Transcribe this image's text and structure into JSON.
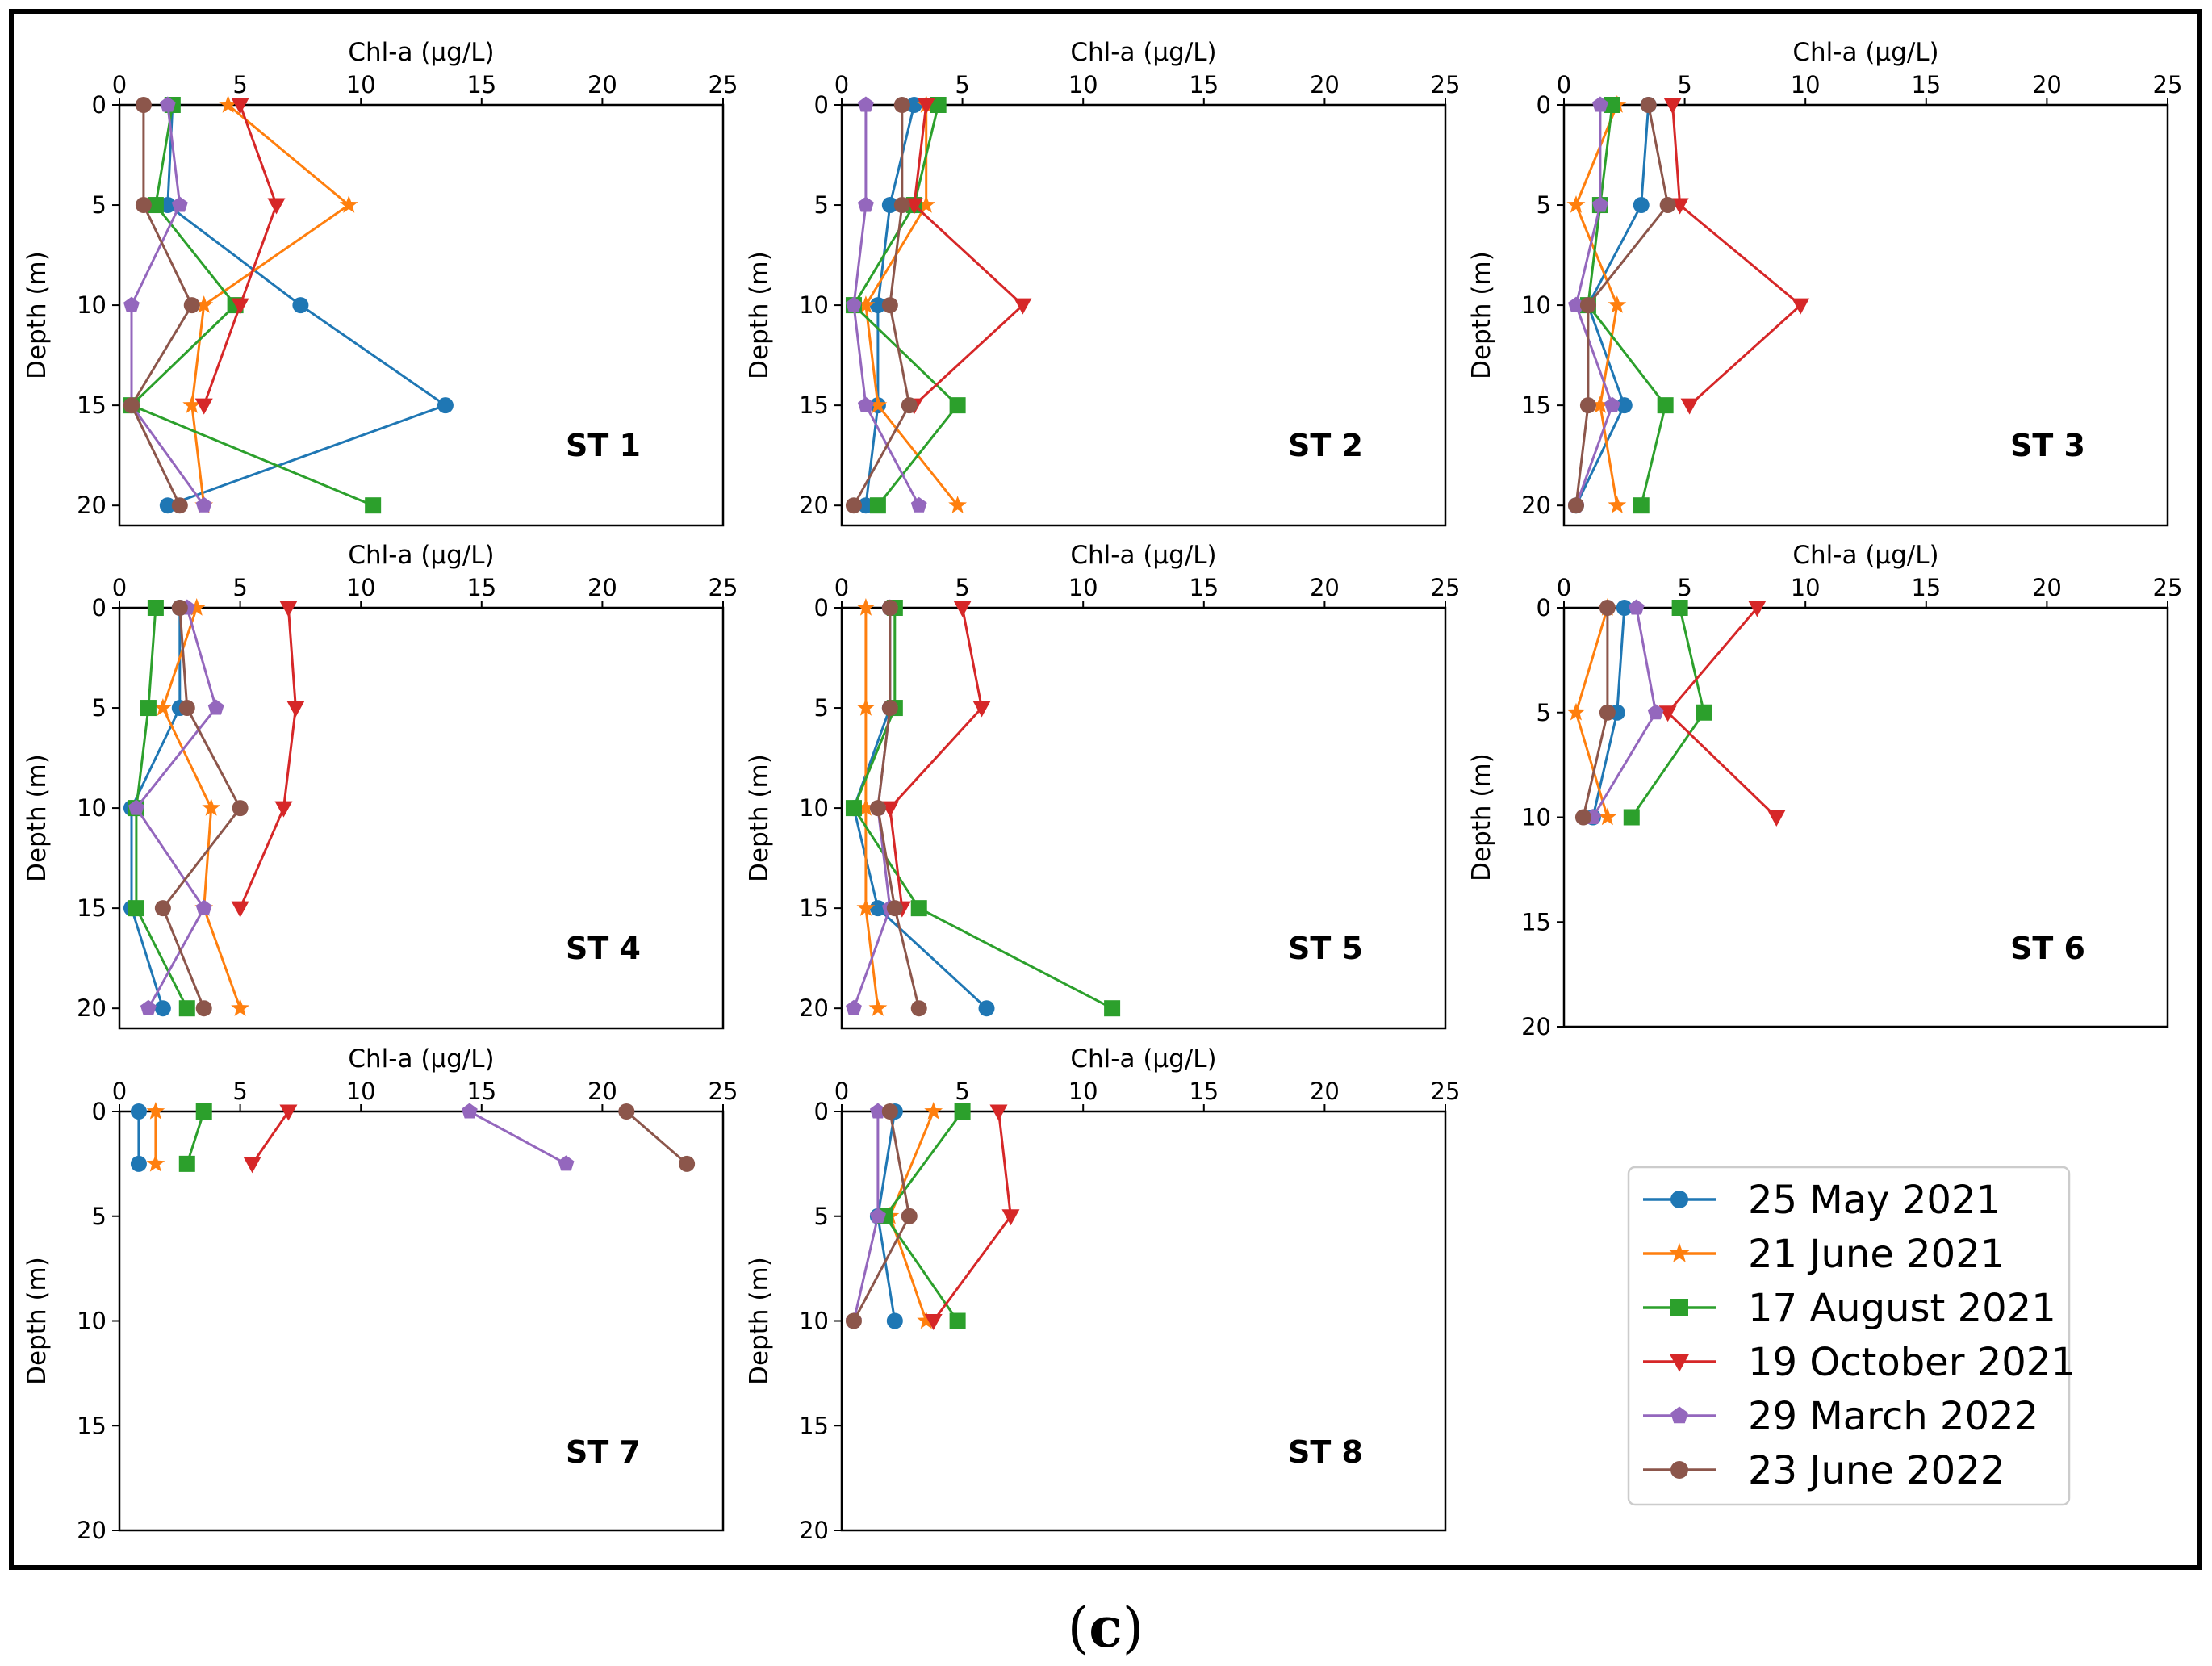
{
  "caption": {
    "open": "(",
    "letter": "c",
    "close": ")"
  },
  "colors": {
    "25 May 2021": "#1f77b4",
    "21 June 2021": "#ff7f0e",
    "17 August 2021": "#2ca02c",
    "19 October 2021": "#d62728",
    "29 March 2022": "#9467bd",
    "23 June 2022": "#8c564b"
  },
  "legend": [
    {
      "label": "25 May 2021",
      "marker": "circle"
    },
    {
      "label": "21 June 2021",
      "marker": "star"
    },
    {
      "label": "17 August 2021",
      "marker": "square"
    },
    {
      "label": "19 October 2021",
      "marker": "triangle-down"
    },
    {
      "label": "29 March 2022",
      "marker": "pentagon"
    },
    {
      "label": "23 June 2022",
      "marker": "circle"
    }
  ],
  "chart_data": [
    {
      "type": "line",
      "title": "ST 1",
      "xlabel": "Chl-a (µg/L)",
      "ylabel": "Depth (m)",
      "xlim": [
        0,
        25
      ],
      "ylim": [
        21,
        0
      ],
      "xticks": [
        0,
        5,
        10,
        15,
        20,
        25
      ],
      "yticks": [
        0,
        5,
        10,
        15,
        20
      ],
      "series": [
        {
          "name": "25 May 2021",
          "x": [
            2.2,
            2.0,
            7.5,
            13.5,
            2.0
          ],
          "y": [
            0,
            5,
            10,
            15,
            20
          ]
        },
        {
          "name": "21 June 2021",
          "x": [
            4.5,
            9.5,
            3.5,
            3.0,
            3.5
          ],
          "y": [
            0,
            5,
            10,
            15,
            20
          ]
        },
        {
          "name": "17 August 2021",
          "x": [
            2.2,
            1.5,
            4.8,
            0.5,
            10.5
          ],
          "y": [
            0,
            5,
            10,
            15,
            20
          ]
        },
        {
          "name": "19 October 2021",
          "x": [
            5.0,
            6.5,
            5.0,
            3.5
          ],
          "y": [
            0,
            5,
            10,
            15
          ]
        },
        {
          "name": "29 March 2022",
          "x": [
            2.0,
            2.5,
            0.5,
            0.5,
            3.5
          ],
          "y": [
            0,
            5,
            10,
            15,
            20
          ]
        },
        {
          "name": "23 June 2022",
          "x": [
            1.0,
            1.0,
            3.0,
            0.5,
            2.5
          ],
          "y": [
            0,
            5,
            10,
            15,
            20
          ]
        }
      ]
    },
    {
      "type": "line",
      "title": "ST 2",
      "xlabel": "Chl-a (µg/L)",
      "ylabel": "Depth (m)",
      "xlim": [
        0,
        25
      ],
      "ylim": [
        21,
        0
      ],
      "xticks": [
        0,
        5,
        10,
        15,
        20,
        25
      ],
      "yticks": [
        0,
        5,
        10,
        15,
        20
      ],
      "series": [
        {
          "name": "25 May 2021",
          "x": [
            3.0,
            2.0,
            1.5,
            1.5,
            1.0
          ],
          "y": [
            0,
            5,
            10,
            15,
            20
          ]
        },
        {
          "name": "21 June 2021",
          "x": [
            3.5,
            3.5,
            1.0,
            1.5,
            4.8
          ],
          "y": [
            0,
            5,
            10,
            15,
            20
          ]
        },
        {
          "name": "17 August 2021",
          "x": [
            4.0,
            3.0,
            0.5,
            4.8,
            1.5
          ],
          "y": [
            0,
            5,
            10,
            15,
            20
          ]
        },
        {
          "name": "19 October 2021",
          "x": [
            3.5,
            3.0,
            7.5,
            3.0
          ],
          "y": [
            0,
            5,
            10,
            15
          ]
        },
        {
          "name": "29 March 2022",
          "x": [
            1.0,
            1.0,
            0.5,
            1.0,
            3.2
          ],
          "y": [
            0,
            5,
            10,
            15,
            20
          ]
        },
        {
          "name": "23 June 2022",
          "x": [
            2.5,
            2.5,
            2.0,
            2.8,
            0.5
          ],
          "y": [
            0,
            5,
            10,
            15,
            20
          ]
        }
      ]
    },
    {
      "type": "line",
      "title": "ST 3",
      "xlabel": "Chl-a (µg/L)",
      "ylabel": "Depth (m)",
      "xlim": [
        0,
        25
      ],
      "ylim": [
        21,
        0
      ],
      "xticks": [
        0,
        5,
        10,
        15,
        20,
        25
      ],
      "yticks": [
        0,
        5,
        10,
        15,
        20
      ],
      "series": [
        {
          "name": "25 May 2021",
          "x": [
            3.5,
            3.2,
            1.0,
            2.5,
            0.5
          ],
          "y": [
            0,
            5,
            10,
            15,
            20
          ]
        },
        {
          "name": "21 June 2021",
          "x": [
            2.2,
            0.5,
            2.2,
            1.5,
            2.2
          ],
          "y": [
            0,
            5,
            10,
            15,
            20
          ]
        },
        {
          "name": "17 August 2021",
          "x": [
            2.0,
            1.5,
            1.0,
            4.2,
            3.2
          ],
          "y": [
            0,
            5,
            10,
            15,
            20
          ]
        },
        {
          "name": "19 October 2021",
          "x": [
            4.5,
            4.8,
            9.8,
            5.2
          ],
          "y": [
            0,
            5,
            10,
            15
          ]
        },
        {
          "name": "29 March 2022",
          "x": [
            1.5,
            1.5,
            0.5,
            2.0,
            0.5
          ],
          "y": [
            0,
            5,
            10,
            15,
            20
          ]
        },
        {
          "name": "23 June 2022",
          "x": [
            3.5,
            4.3,
            1.0,
            1.0,
            0.5
          ],
          "y": [
            0,
            5,
            10,
            15,
            20
          ]
        }
      ]
    },
    {
      "type": "line",
      "title": "ST 4",
      "xlabel": "Chl-a (µg/L)",
      "ylabel": "Depth (m)",
      "xlim": [
        0,
        25
      ],
      "ylim": [
        21,
        0
      ],
      "xticks": [
        0,
        5,
        10,
        15,
        20,
        25
      ],
      "yticks": [
        0,
        5,
        10,
        15,
        20
      ],
      "series": [
        {
          "name": "25 May 2021",
          "x": [
            2.5,
            2.5,
            0.5,
            0.5,
            1.8
          ],
          "y": [
            0,
            5,
            10,
            15,
            20
          ]
        },
        {
          "name": "21 June 2021",
          "x": [
            3.2,
            1.8,
            3.8,
            3.5,
            5.0
          ],
          "y": [
            0,
            5,
            10,
            15,
            20
          ]
        },
        {
          "name": "17 August 2021",
          "x": [
            1.5,
            1.2,
            0.7,
            0.7,
            2.8
          ],
          "y": [
            0,
            5,
            10,
            15,
            20
          ]
        },
        {
          "name": "19 October 2021",
          "x": [
            7.0,
            7.3,
            6.8,
            5.0
          ],
          "y": [
            0,
            5,
            10,
            15
          ]
        },
        {
          "name": "29 March 2022",
          "x": [
            2.8,
            4.0,
            0.7,
            3.5,
            1.2
          ],
          "y": [
            0,
            5,
            10,
            15,
            20
          ]
        },
        {
          "name": "23 June 2022",
          "x": [
            2.5,
            2.8,
            5.0,
            1.8,
            3.5
          ],
          "y": [
            0,
            5,
            10,
            15,
            20
          ]
        }
      ]
    },
    {
      "type": "line",
      "title": "ST 5",
      "xlabel": "Chl-a (µg/L)",
      "ylabel": "Depth (m)",
      "xlim": [
        0,
        25
      ],
      "ylim": [
        21,
        0
      ],
      "xticks": [
        0,
        5,
        10,
        15,
        20,
        25
      ],
      "yticks": [
        0,
        5,
        10,
        15,
        20
      ],
      "series": [
        {
          "name": "25 May 2021",
          "x": [
            2.0,
            2.0,
            0.5,
            1.5,
            6.0
          ],
          "y": [
            0,
            5,
            10,
            15,
            20
          ]
        },
        {
          "name": "21 June 2021",
          "x": [
            1.0,
            1.0,
            1.0,
            1.0,
            1.5
          ],
          "y": [
            0,
            5,
            10,
            15,
            20
          ]
        },
        {
          "name": "17 August 2021",
          "x": [
            2.2,
            2.2,
            0.5,
            3.2,
            11.2
          ],
          "y": [
            0,
            5,
            10,
            15,
            20
          ]
        },
        {
          "name": "19 October 2021",
          "x": [
            5.0,
            5.8,
            2.0,
            2.5
          ],
          "y": [
            0,
            5,
            10,
            15
          ]
        },
        {
          "name": "29 March 2022",
          "x": [
            2.0,
            2.0,
            1.5,
            2.0,
            0.5
          ],
          "y": [
            0,
            5,
            10,
            15,
            20
          ]
        },
        {
          "name": "23 June 2022",
          "x": [
            2.0,
            2.0,
            1.5,
            2.2,
            3.2
          ],
          "y": [
            0,
            5,
            10,
            15,
            20
          ]
        }
      ]
    },
    {
      "type": "line",
      "title": "ST 6",
      "xlabel": "Chl-a (µg/L)",
      "ylabel": "Depth (m)",
      "xlim": [
        0,
        25
      ],
      "ylim": [
        20,
        0
      ],
      "xticks": [
        0,
        5,
        10,
        15,
        20,
        25
      ],
      "yticks": [
        0,
        5,
        10,
        15,
        20
      ],
      "series": [
        {
          "name": "25 May 2021",
          "x": [
            2.5,
            2.2,
            1.2
          ],
          "y": [
            0,
            5,
            10
          ]
        },
        {
          "name": "21 June 2021",
          "x": [
            1.8,
            0.5,
            1.8
          ],
          "y": [
            0,
            5,
            10
          ]
        },
        {
          "name": "17 August 2021",
          "x": [
            4.8,
            5.8,
            2.8
          ],
          "y": [
            0,
            5,
            10
          ]
        },
        {
          "name": "19 October 2021",
          "x": [
            8.0,
            4.3,
            8.8
          ],
          "y": [
            0,
            5,
            10
          ]
        },
        {
          "name": "29 March 2022",
          "x": [
            3.0,
            3.8,
            1.2
          ],
          "y": [
            0,
            5,
            10
          ]
        },
        {
          "name": "23 June 2022",
          "x": [
            1.8,
            1.8,
            0.8
          ],
          "y": [
            0,
            5,
            10
          ]
        }
      ]
    },
    {
      "type": "line",
      "title": "ST 7",
      "xlabel": "Chl-a (µg/L)",
      "ylabel": "Depth (m)",
      "xlim": [
        0,
        25
      ],
      "ylim": [
        20,
        0
      ],
      "xticks": [
        0,
        5,
        10,
        15,
        20,
        25
      ],
      "yticks": [
        0,
        5,
        10,
        15,
        20
      ],
      "series": [
        {
          "name": "25 May 2021",
          "x": [
            0.8,
            0.8
          ],
          "y": [
            0,
            2.5
          ]
        },
        {
          "name": "21 June 2021",
          "x": [
            1.5,
            1.5
          ],
          "y": [
            0,
            2.5
          ]
        },
        {
          "name": "17 August 2021",
          "x": [
            3.5,
            2.8
          ],
          "y": [
            0,
            2.5
          ]
        },
        {
          "name": "19 October 2021",
          "x": [
            7.0,
            5.5
          ],
          "y": [
            0,
            2.5
          ]
        },
        {
          "name": "29 March 2022",
          "x": [
            14.5,
            18.5
          ],
          "y": [
            0,
            2.5
          ]
        },
        {
          "name": "23 June 2022",
          "x": [
            21.0,
            23.5
          ],
          "y": [
            0,
            2.5
          ]
        }
      ]
    },
    {
      "type": "line",
      "title": "ST 8",
      "xlabel": "Chl-a (µg/L)",
      "ylabel": "Depth (m)",
      "xlim": [
        0,
        25
      ],
      "ylim": [
        20,
        0
      ],
      "xticks": [
        0,
        5,
        10,
        15,
        20,
        25
      ],
      "yticks": [
        0,
        5,
        10,
        15,
        20
      ],
      "series": [
        {
          "name": "25 May 2021",
          "x": [
            2.2,
            1.5,
            2.2
          ],
          "y": [
            0,
            5,
            10
          ]
        },
        {
          "name": "21 June 2021",
          "x": [
            3.8,
            2.0,
            3.5
          ],
          "y": [
            0,
            5,
            10
          ]
        },
        {
          "name": "17 August 2021",
          "x": [
            5.0,
            1.8,
            4.8
          ],
          "y": [
            0,
            5,
            10
          ]
        },
        {
          "name": "19 October 2021",
          "x": [
            6.5,
            7.0,
            3.8
          ],
          "y": [
            0,
            5,
            10
          ]
        },
        {
          "name": "29 March 2022",
          "x": [
            1.5,
            1.5,
            0.5
          ],
          "y": [
            0,
            5,
            10
          ]
        },
        {
          "name": "23 June 2022",
          "x": [
            2.0,
            2.8,
            0.5
          ],
          "y": [
            0,
            5,
            10
          ]
        }
      ]
    }
  ]
}
